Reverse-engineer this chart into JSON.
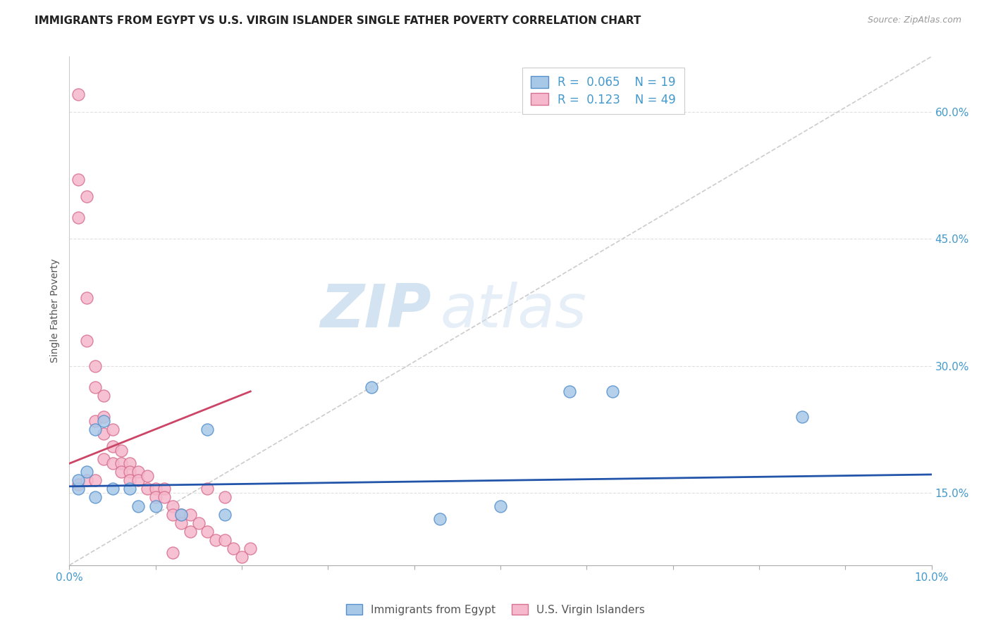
{
  "title": "IMMIGRANTS FROM EGYPT VS U.S. VIRGIN ISLANDER SINGLE FATHER POVERTY CORRELATION CHART",
  "source": "Source: ZipAtlas.com",
  "ylabel": "Single Father Poverty",
  "ytick_labels": [
    "15.0%",
    "30.0%",
    "45.0%",
    "60.0%"
  ],
  "ytick_values": [
    0.15,
    0.3,
    0.45,
    0.6
  ],
  "xmin": 0.0,
  "xmax": 0.1,
  "ymin": 0.065,
  "ymax": 0.665,
  "legend_r1": "R =  0.065",
  "legend_n1": "N = 19",
  "legend_r2": "R =  0.123",
  "legend_n2": "N = 49",
  "watermark_zip": "ZIP",
  "watermark_atlas": "atlas",
  "blue_scatter_x": [
    0.001,
    0.001,
    0.002,
    0.003,
    0.003,
    0.004,
    0.005,
    0.007,
    0.008,
    0.01,
    0.013,
    0.016,
    0.018,
    0.035,
    0.043,
    0.05,
    0.058,
    0.063,
    0.085
  ],
  "blue_scatter_y": [
    0.155,
    0.165,
    0.175,
    0.145,
    0.225,
    0.235,
    0.155,
    0.155,
    0.135,
    0.135,
    0.125,
    0.225,
    0.125,
    0.275,
    0.12,
    0.135,
    0.27,
    0.27,
    0.24
  ],
  "pink_scatter_x": [
    0.001,
    0.001,
    0.001,
    0.001,
    0.002,
    0.002,
    0.002,
    0.002,
    0.003,
    0.003,
    0.003,
    0.003,
    0.004,
    0.004,
    0.004,
    0.004,
    0.005,
    0.005,
    0.005,
    0.006,
    0.006,
    0.006,
    0.007,
    0.007,
    0.007,
    0.008,
    0.008,
    0.009,
    0.009,
    0.01,
    0.01,
    0.011,
    0.011,
    0.012,
    0.012,
    0.012,
    0.013,
    0.013,
    0.014,
    0.014,
    0.015,
    0.016,
    0.016,
    0.017,
    0.018,
    0.018,
    0.019,
    0.02,
    0.021
  ],
  "pink_scatter_y": [
    0.62,
    0.52,
    0.475,
    0.16,
    0.5,
    0.38,
    0.33,
    0.165,
    0.3,
    0.275,
    0.235,
    0.165,
    0.265,
    0.24,
    0.22,
    0.19,
    0.225,
    0.205,
    0.185,
    0.2,
    0.185,
    0.175,
    0.185,
    0.175,
    0.165,
    0.175,
    0.165,
    0.17,
    0.155,
    0.155,
    0.145,
    0.155,
    0.145,
    0.135,
    0.125,
    0.08,
    0.125,
    0.115,
    0.125,
    0.105,
    0.115,
    0.155,
    0.105,
    0.095,
    0.095,
    0.145,
    0.085,
    0.075,
    0.085
  ],
  "blue_color": "#a8c8e8",
  "pink_color": "#f5b8cc",
  "blue_edge_color": "#5590cc",
  "pink_edge_color": "#d87090",
  "blue_line_color": "#2255aa",
  "pink_line_color": "#cc4466",
  "diagonal_color": "#cccccc",
  "grid_color": "#e0e0e0",
  "axis_color": "#4499cc",
  "title_color": "#222222",
  "source_color": "#999999",
  "blue_trend_x": [
    0.0,
    0.1
  ],
  "blue_trend_y": [
    0.158,
    0.172
  ],
  "pink_trend_x": [
    0.0,
    0.021
  ],
  "pink_trend_y": [
    0.185,
    0.27
  ]
}
